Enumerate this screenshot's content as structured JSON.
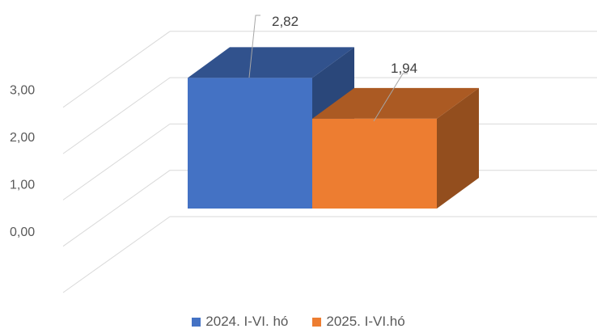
{
  "chart_data": {
    "type": "bar",
    "categories": [
      ""
    ],
    "series": [
      {
        "name": "2024. I-VI. hó",
        "values": [
          2.82
        ],
        "color": "#4472C4"
      },
      {
        "name": "2025. I-VI.hó",
        "values": [
          1.94
        ],
        "color": "#ED7D31"
      }
    ],
    "data_labels": [
      "2,82",
      "1,94"
    ],
    "y_ticks": [
      "0,00",
      "1,00",
      "2,00",
      "3,00"
    ],
    "ylim": [
      0,
      3
    ],
    "grid": true,
    "three_d": true,
    "legend_position": "bottom"
  }
}
